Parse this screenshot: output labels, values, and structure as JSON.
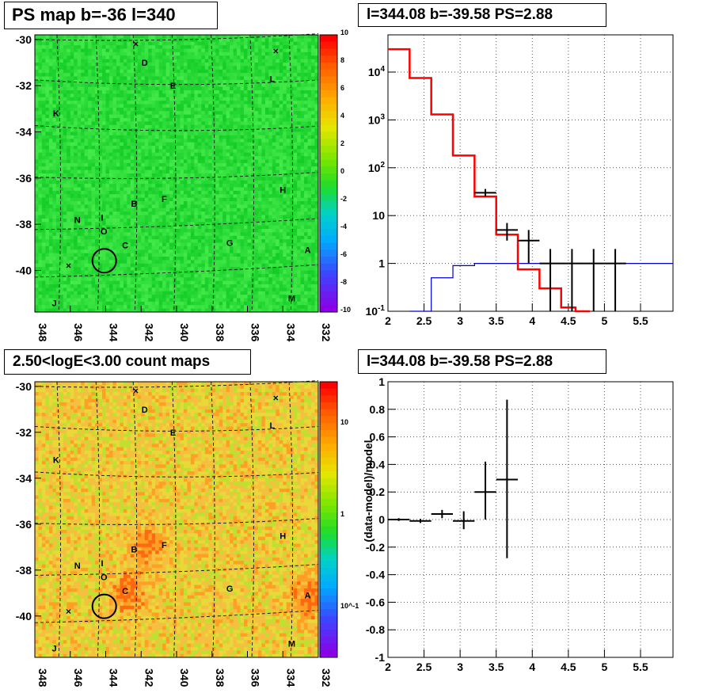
{
  "panels": {
    "ps_map": {
      "title": "PS map b=-36 l=340"
    },
    "spectrum": {
      "title": "l=344.08 b=-39.58 PS=2.88"
    },
    "count_map": {
      "title": "2.50<logE<3.00 count maps"
    },
    "residual": {
      "title": "l=344.08 b=-39.58 PS=2.88"
    }
  },
  "colors": {
    "data": "#000000",
    "model": "#ff0000",
    "background_model": "#0000cc",
    "ps_map_base": "#22dd33",
    "count_map_base": "#f5c040"
  },
  "chart_data": [
    {
      "name": "ps_map",
      "type": "heatmap",
      "x_ticks": [
        "348",
        "346",
        "344",
        "342",
        "340",
        "338",
        "336",
        "334",
        "332"
      ],
      "y_ticks": [
        "-30",
        "-32",
        "-34",
        "-36",
        "-38",
        "-40"
      ],
      "xlim": [
        348,
        332
      ],
      "ylim": [
        -41.8,
        -29.8
      ],
      "colorbar": {
        "min": -10,
        "max": 10,
        "ticks": [
          "10",
          "8",
          "6",
          "4",
          "2",
          "0",
          "-2",
          "-4",
          "-6",
          "-8",
          "-10"
        ]
      },
      "labels": [
        {
          "t": "D",
          "x": 341.8,
          "y": -31.0
        },
        {
          "t": "E",
          "x": 340.2,
          "y": -32.0
        },
        {
          "t": "L",
          "x": 334.6,
          "y": -31.7
        },
        {
          "t": "K",
          "x": 346.8,
          "y": -33.2
        },
        {
          "t": "H",
          "x": 334.0,
          "y": -36.5
        },
        {
          "t": "B",
          "x": 342.4,
          "y": -37.1
        },
        {
          "t": "F",
          "x": 340.7,
          "y": -36.9
        },
        {
          "t": "N",
          "x": 345.6,
          "y": -37.8
        },
        {
          "t": "I",
          "x": 344.2,
          "y": -37.7
        },
        {
          "t": "O",
          "x": 344.1,
          "y": -38.3
        },
        {
          "t": "C",
          "x": 342.9,
          "y": -38.9
        },
        {
          "t": "G",
          "x": 337.0,
          "y": -38.8
        },
        {
          "t": "A",
          "x": 332.6,
          "y": -39.1
        },
        {
          "t": "M",
          "x": 333.5,
          "y": -41.2
        },
        {
          "t": "J",
          "x": 346.9,
          "y": -41.4
        }
      ],
      "crosses": [
        {
          "x": 342.3,
          "y": -30.2
        },
        {
          "x": 334.4,
          "y": -30.5
        },
        {
          "x": 346.1,
          "y": -39.8
        }
      ],
      "circle": {
        "x": 344.08,
        "y": -39.58
      }
    },
    {
      "name": "spectrum",
      "type": "line",
      "x_ticks": [
        "2",
        "2.5",
        "3",
        "3.5",
        "4",
        "4.5",
        "5",
        "5.5"
      ],
      "y_ticks": [
        "10^4",
        "10^3",
        "10^2",
        "10",
        "1",
        "10^-1"
      ],
      "xlim": [
        2,
        5.95
      ],
      "ylim": [
        0.1,
        60000
      ],
      "log_y": true,
      "grid": true,
      "model_steps": [
        {
          "x0": 2.0,
          "x1": 2.3,
          "y": 30000
        },
        {
          "x0": 2.3,
          "x1": 2.6,
          "y": 7500
        },
        {
          "x0": 2.6,
          "x1": 2.9,
          "y": 1300
        },
        {
          "x0": 2.9,
          "x1": 3.2,
          "y": 180
        },
        {
          "x0": 3.2,
          "x1": 3.5,
          "y": 25
        },
        {
          "x0": 3.5,
          "x1": 3.8,
          "y": 4
        },
        {
          "x0": 3.8,
          "x1": 4.1,
          "y": 0.75
        },
        {
          "x0": 4.1,
          "x1": 4.4,
          "y": 0.3
        },
        {
          "x0": 4.4,
          "x1": 4.6,
          "y": 0.12
        },
        {
          "x0": 4.6,
          "x1": 4.8,
          "y": 0.1
        }
      ],
      "background_steps": [
        {
          "x0": 2.3,
          "x1": 2.6,
          "y": 0.1
        },
        {
          "x0": 2.6,
          "x1": 2.9,
          "y": 0.5
        },
        {
          "x0": 2.9,
          "x1": 3.2,
          "y": 0.9
        },
        {
          "x0": 3.2,
          "x1": 3.5,
          "y": 1.0
        },
        {
          "x0": 3.5,
          "x1": 5.95,
          "y": 1.0
        }
      ],
      "data_points": [
        {
          "x": 3.35,
          "xerr": 0.15,
          "y": 30,
          "ylo": 25,
          "yhi": 36
        },
        {
          "x": 3.65,
          "xerr": 0.15,
          "y": 5,
          "ylo": 3,
          "yhi": 7
        },
        {
          "x": 3.95,
          "xerr": 0.15,
          "y": 3,
          "ylo": 1,
          "yhi": 5
        },
        {
          "x": 4.25,
          "xerr": 0.15,
          "y": 1,
          "ylo": 0.1,
          "yhi": 2
        },
        {
          "x": 4.55,
          "xerr": 0.15,
          "y": 1,
          "ylo": 0.1,
          "yhi": 2
        },
        {
          "x": 4.85,
          "xerr": 0.15,
          "y": 1,
          "ylo": 0.1,
          "yhi": 2
        },
        {
          "x": 5.15,
          "xerr": 0.15,
          "y": 1,
          "ylo": 0.1,
          "yhi": 2
        }
      ]
    },
    {
      "name": "count_map",
      "type": "heatmap",
      "x_ticks": [
        "348",
        "346",
        "344",
        "342",
        "340",
        "338",
        "336",
        "334",
        "332"
      ],
      "y_ticks": [
        "-30",
        "-32",
        "-34",
        "-36",
        "-38",
        "-40"
      ],
      "xlim": [
        348,
        332
      ],
      "ylim": [
        -41.8,
        -29.8
      ],
      "colorbar": {
        "ticks": [
          "10",
          "1",
          "10^-1"
        ]
      },
      "labels": [
        {
          "t": "D",
          "x": 341.8,
          "y": -31.0
        },
        {
          "t": "E",
          "x": 340.2,
          "y": -32.0
        },
        {
          "t": "L",
          "x": 334.6,
          "y": -31.7
        },
        {
          "t": "K",
          "x": 346.8,
          "y": -33.2
        },
        {
          "t": "H",
          "x": 334.0,
          "y": -36.5
        },
        {
          "t": "B",
          "x": 342.4,
          "y": -37.1
        },
        {
          "t": "F",
          "x": 340.7,
          "y": -36.9
        },
        {
          "t": "N",
          "x": 345.6,
          "y": -37.8
        },
        {
          "t": "I",
          "x": 344.2,
          "y": -37.7
        },
        {
          "t": "O",
          "x": 344.1,
          "y": -38.3
        },
        {
          "t": "C",
          "x": 342.9,
          "y": -38.9
        },
        {
          "t": "G",
          "x": 337.0,
          "y": -38.8
        },
        {
          "t": "A",
          "x": 332.6,
          "y": -39.1
        },
        {
          "t": "M",
          "x": 333.5,
          "y": -41.2
        },
        {
          "t": "J",
          "x": 346.9,
          "y": -41.4
        }
      ],
      "crosses": [
        {
          "x": 342.3,
          "y": -30.2
        },
        {
          "x": 334.4,
          "y": -30.5
        },
        {
          "x": 346.1,
          "y": -39.8
        }
      ],
      "circle": {
        "x": 344.08,
        "y": -39.58
      },
      "hotspots": [
        {
          "x": 341.6,
          "y": -37.0
        },
        {
          "x": 342.7,
          "y": -39.0
        },
        {
          "x": 332.5,
          "y": -39.2
        }
      ]
    },
    {
      "name": "residual",
      "type": "scatter",
      "x_ticks": [
        "2",
        "2.5",
        "3",
        "3.5",
        "4",
        "4.5",
        "5",
        "5.5"
      ],
      "y_ticks": [
        "1",
        "0.8",
        "0.6",
        "0.4",
        "0.2",
        "0",
        "-0.2",
        "-0.4",
        "-0.6",
        "-0.8",
        "-1"
      ],
      "xlim": [
        2,
        5.95
      ],
      "ylim": [
        -1,
        1
      ],
      "ylabel": "(data-model)/model",
      "grid": true,
      "data_points": [
        {
          "x": 2.15,
          "xerr": 0.15,
          "y": 0.0,
          "ylo": -0.01,
          "yhi": 0.01
        },
        {
          "x": 2.45,
          "xerr": 0.15,
          "y": -0.01,
          "ylo": -0.025,
          "yhi": 0.005
        },
        {
          "x": 2.75,
          "xerr": 0.15,
          "y": 0.04,
          "ylo": 0.01,
          "yhi": 0.07
        },
        {
          "x": 3.05,
          "xerr": 0.15,
          "y": -0.01,
          "ylo": -0.07,
          "yhi": 0.06
        },
        {
          "x": 3.35,
          "xerr": 0.15,
          "y": 0.2,
          "ylo": 0.0,
          "yhi": 0.42
        },
        {
          "x": 3.65,
          "xerr": 0.15,
          "y": 0.29,
          "ylo": -0.28,
          "yhi": 0.87
        }
      ]
    }
  ]
}
